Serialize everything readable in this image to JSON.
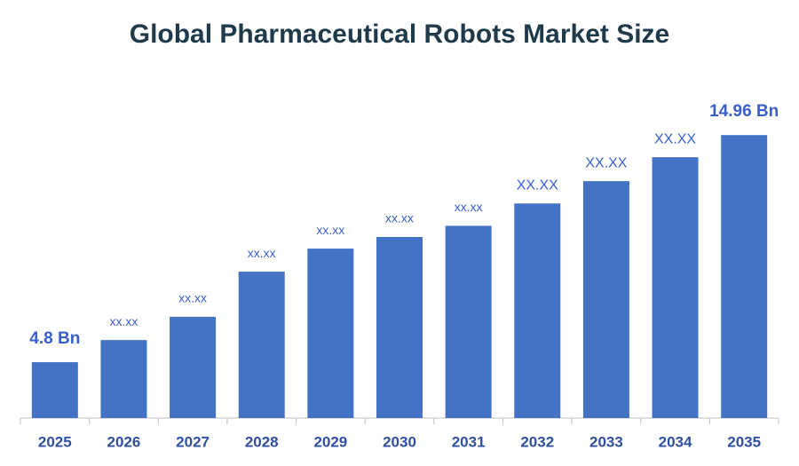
{
  "chart_data": {
    "type": "bar",
    "title": "Global Pharmaceutical Robots Market Size",
    "categories": [
      "2025",
      "2026",
      "2027",
      "2028",
      "2029",
      "2030",
      "2031",
      "2032",
      "2033",
      "2034",
      "2035"
    ],
    "values": [
      4.8,
      5.79,
      6.83,
      8.85,
      9.88,
      10.4,
      10.9,
      11.9,
      12.9,
      13.97,
      14.96
    ],
    "value_labels": [
      "4.8 Bn",
      "xx.xx",
      "xx.xx",
      "xx.xx",
      "xx.xx",
      "xx.xx",
      "xx.xx",
      "XX.XX",
      "XX.XX",
      "XX.XX",
      "14.96 Bn"
    ],
    "color": "#4472c4",
    "ylim": [
      2.3,
      16
    ]
  }
}
